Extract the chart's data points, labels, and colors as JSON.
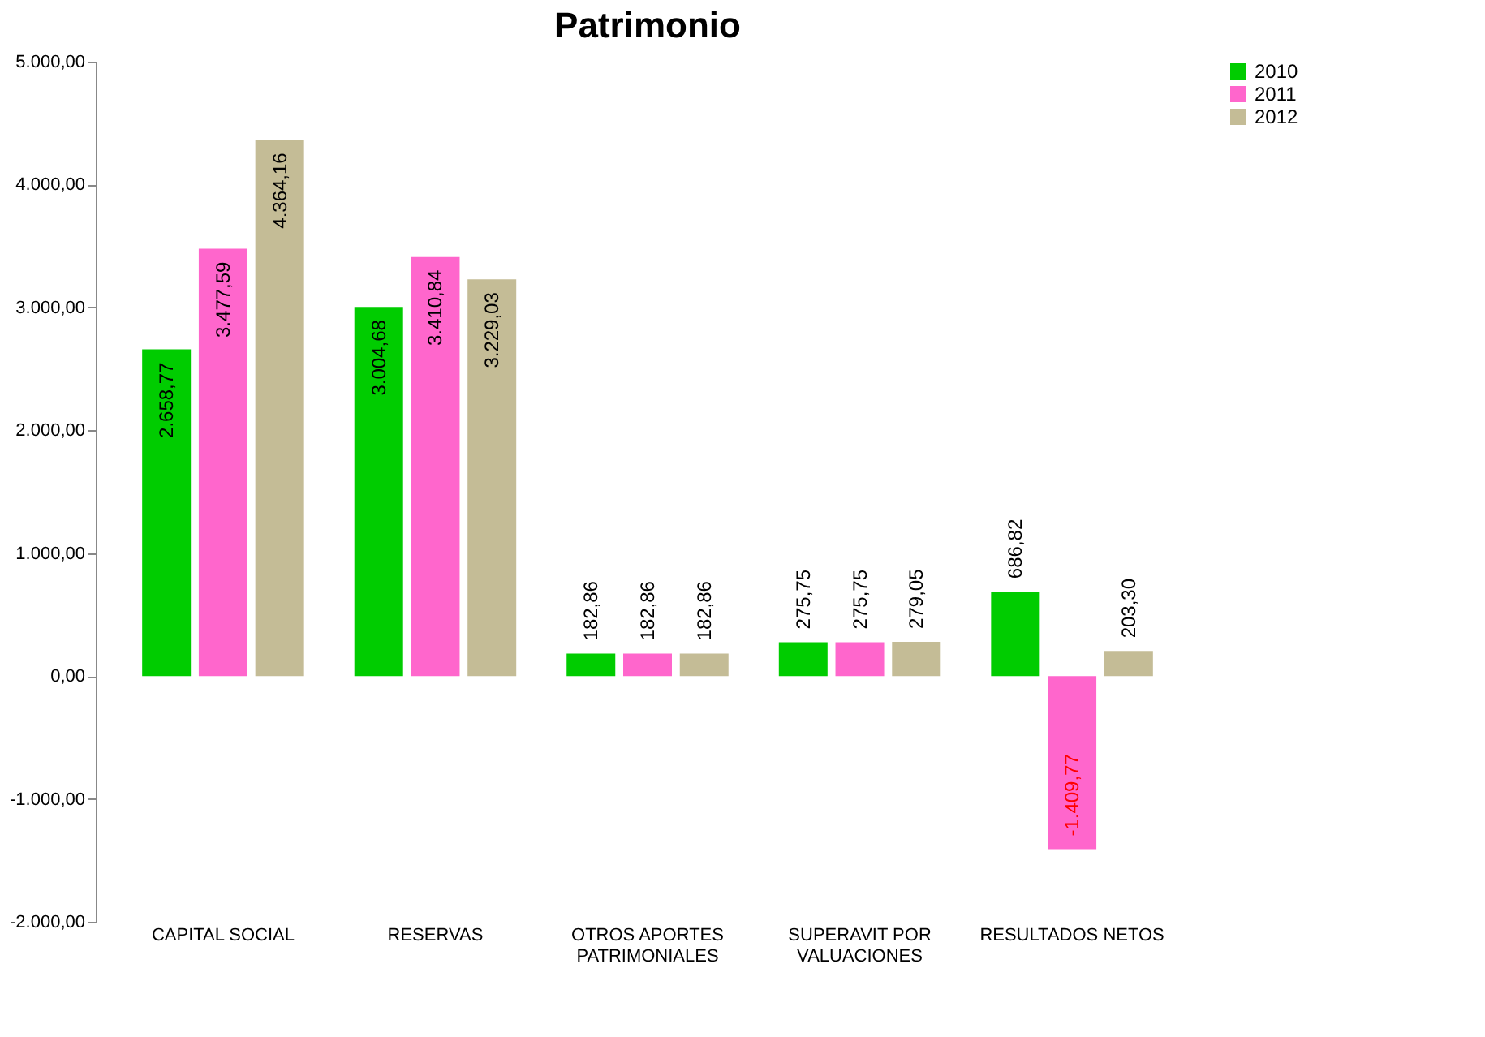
{
  "chart_data": {
    "type": "bar",
    "title": "Patrimonio",
    "categories": [
      "CAPITAL SOCIAL",
      "RESERVAS",
      "OTROS APORTES PATRIMONIALES",
      "SUPERAVIT POR VALUACIONES",
      "RESULTADOS NETOS"
    ],
    "series": [
      {
        "name": "2010",
        "color": "#00cc00",
        "values": [
          2658.77,
          3004.68,
          182.86,
          275.75,
          686.82
        ],
        "value_labels": [
          "2.658,77",
          "3.004,68",
          "182,86",
          "275,75",
          "686,82"
        ]
      },
      {
        "name": "2011",
        "color": "#ff66cc",
        "values": [
          3477.59,
          3410.84,
          182.86,
          275.75,
          -1409.77
        ],
        "value_labels": [
          "3.477,59",
          "3.410,84",
          "182,86",
          "275,75",
          "-1.409,77"
        ]
      },
      {
        "name": "2012",
        "color": "#c4bc96",
        "values": [
          4364.16,
          3229.03,
          182.86,
          279.05,
          203.3
        ],
        "value_labels": [
          "4.364,16",
          "3.229,03",
          "182,86",
          "279,05",
          "203,30"
        ]
      }
    ],
    "ylim": [
      -2000,
      5000
    ],
    "yticks": [
      {
        "value": -2000,
        "label": "-2.000,00"
      },
      {
        "value": -1000,
        "label": "-1.000,00"
      },
      {
        "value": 0,
        "label": "0,00"
      },
      {
        "value": 1000,
        "label": "1.000,00"
      },
      {
        "value": 2000,
        "label": "2.000,00"
      },
      {
        "value": 3000,
        "label": "3.000,00"
      },
      {
        "value": 4000,
        "label": "4.000,00"
      },
      {
        "value": 5000,
        "label": "5.000,00"
      }
    ],
    "grid": false,
    "legend": "right"
  }
}
